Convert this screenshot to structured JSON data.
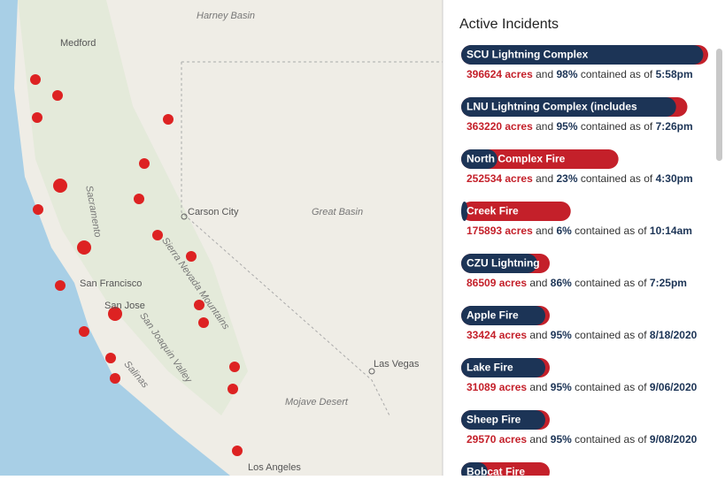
{
  "map": {
    "labels": [
      "Medford",
      "Harney Basin",
      "Carson City",
      "Great Basin",
      "Sacramento",
      "San Francisco",
      "San Jose",
      "Sierra Nevada Mountains",
      "San Joaquin Valley",
      "Salinas",
      "Las Vegas",
      "Mojave Desert",
      "Los Angeles"
    ]
  },
  "panel": {
    "title": "Active Incidents",
    "connector": "and",
    "contained_text": "contained as of",
    "incidents": [
      {
        "name": "SCU Lightning Complex",
        "acres": 396624,
        "acres_label": "396624 acres",
        "contained": 98,
        "contained_label": "98%",
        "time": "5:58pm"
      },
      {
        "name": "LNU Lightning Complex (includes",
        "acres": 363220,
        "acres_label": "363220 acres",
        "contained": 95,
        "contained_label": "95%",
        "time": "7:26pm"
      },
      {
        "name": "North Complex Fire",
        "acres": 252534,
        "acres_label": "252534 acres",
        "contained": 23,
        "contained_label": "23%",
        "time": "4:30pm"
      },
      {
        "name": "Creek Fire",
        "acres": 175893,
        "acres_label": "175893 acres",
        "contained": 6,
        "contained_label": "6%",
        "time": "10:14am"
      },
      {
        "name": "CZU Lightning",
        "acres": 86509,
        "acres_label": "86509 acres",
        "contained": 86,
        "contained_label": "86%",
        "time": "7:25pm"
      },
      {
        "name": "Apple Fire",
        "acres": 33424,
        "acres_label": "33424 acres",
        "contained": 95,
        "contained_label": "95%",
        "time": "8/18/2020"
      },
      {
        "name": "Lake Fire",
        "acres": 31089,
        "acres_label": "31089 acres",
        "contained": 95,
        "contained_label": "95%",
        "time": "9/06/2020"
      },
      {
        "name": "Sheep Fire",
        "acres": 29570,
        "acres_label": "29570 acres",
        "contained": 95,
        "contained_label": "95%",
        "time": "9/08/2020"
      },
      {
        "name": "Bobcat Fire"
      }
    ]
  }
}
